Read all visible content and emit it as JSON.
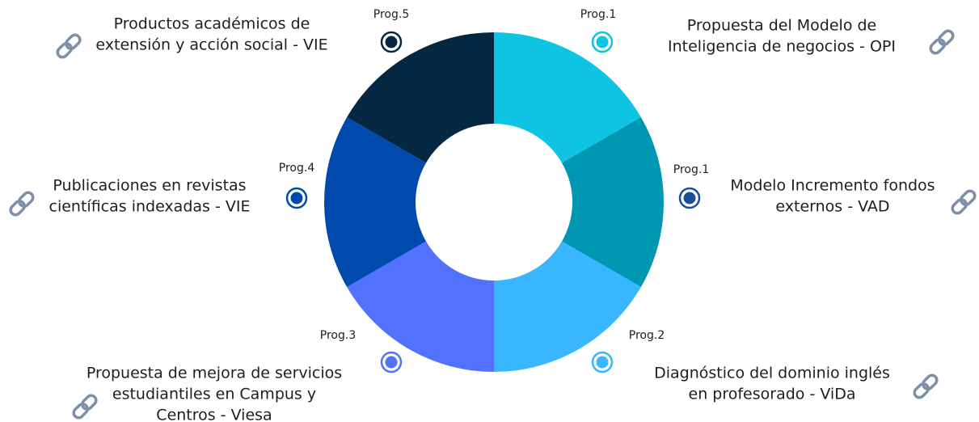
{
  "items": [
    {
      "prog": "Prog.1",
      "lines": [
        "Propuesta del Modelo de",
        "Inteligencia de negocios - OPI"
      ],
      "segment_color": "#0ec4e2",
      "marker_color": "#0ec4e2"
    },
    {
      "prog": "Prog.1",
      "lines": [
        "Modelo Incremento fondos",
        "externos - VAD"
      ],
      "segment_color": "#0097b2",
      "marker_color": "#1b4f9c"
    },
    {
      "prog": "Prog.2",
      "lines": [
        "Diagnóstico del dominio inglés",
        "en profesorado - ViDa"
      ],
      "segment_color": "#38b6ff",
      "marker_color": "#38b6ff"
    },
    {
      "prog": "Prog.3",
      "lines": [
        "Propuesta de mejora de servicios",
        "estudiantiles en Campus y",
        "Centros - Viesa"
      ],
      "segment_color": "#5271ff",
      "marker_color": "#5271ff"
    },
    {
      "prog": "Prog.4",
      "lines": [
        "Publicaciones en revistas",
        "científicas indexadas - VIE"
      ],
      "segment_color": "#004aad",
      "marker_color": "#004aad"
    },
    {
      "prog": "Prog.5",
      "lines": [
        "Productos académicos de",
        "extensión y acción social - VIE"
      ],
      "segment_color": "#052842",
      "marker_color": "#052842"
    }
  ]
}
